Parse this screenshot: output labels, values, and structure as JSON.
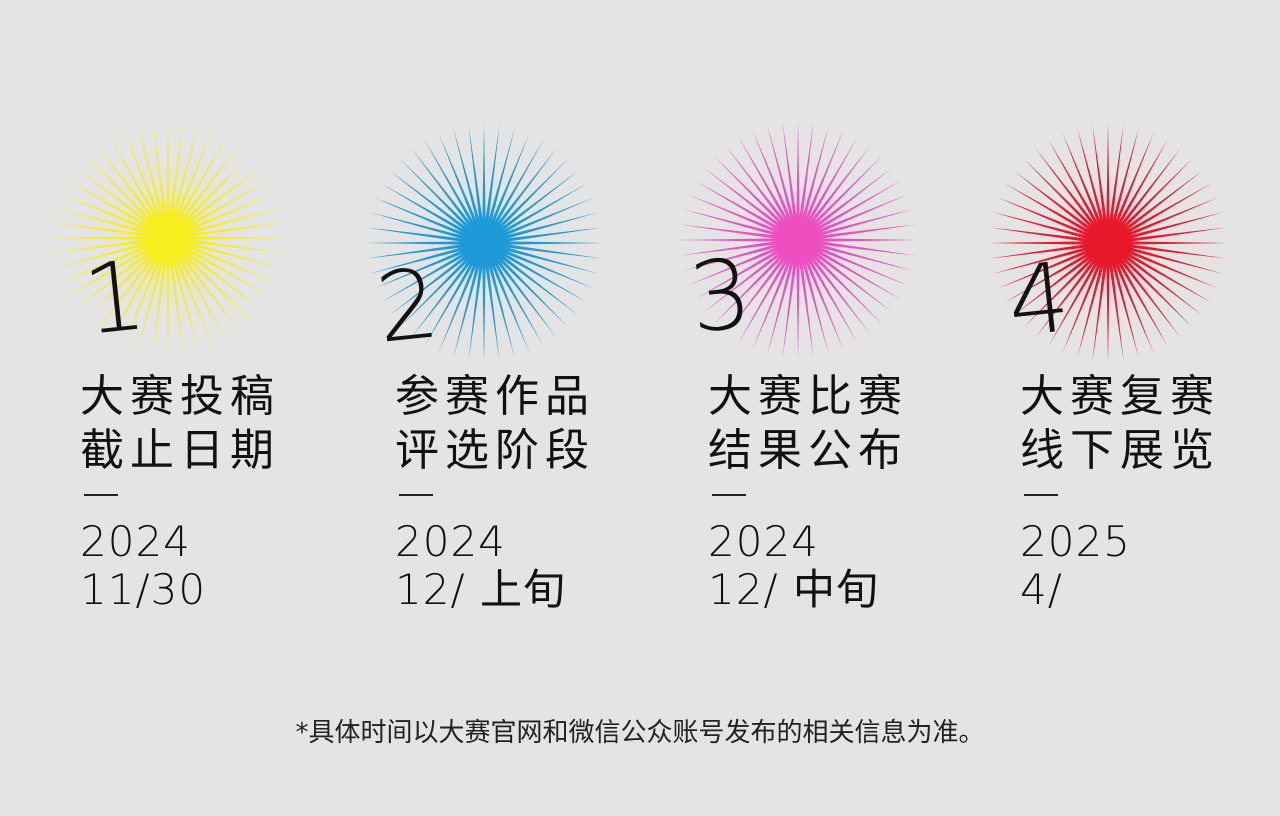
{
  "stages": [
    {
      "number": "1",
      "title_line1": "大赛投稿",
      "title_line2": "截止日期",
      "year": "2024",
      "date": "11/30",
      "color": "#f7ee1f"
    },
    {
      "number": "2",
      "title_line1": "参赛作品",
      "title_line2": "评选阶段",
      "year": "2024",
      "date": "12/ 上旬",
      "color": "#1e9ad8"
    },
    {
      "number": "3",
      "title_line1": "大赛比赛",
      "title_line2": "结果公布",
      "year": "2024",
      "date": "12/ 中旬",
      "color": "#ee4fc0"
    },
    {
      "number": "4",
      "title_line1": "大赛复赛",
      "title_line2": "线下展览",
      "year": "2025",
      "date": "4/",
      "color": "#e8192c"
    }
  ],
  "footer": "*具体时间以大赛官网和微信公众账号发布的相关信息为准。"
}
